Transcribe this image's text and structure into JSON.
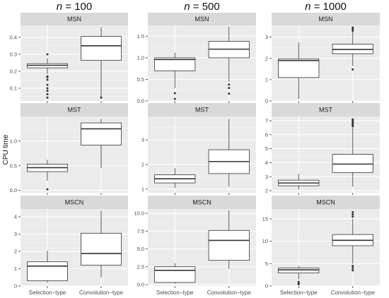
{
  "column_titles": [
    {
      "italic": "n",
      "rest": " = 100"
    },
    {
      "italic": "n",
      "rest": " = 500"
    },
    {
      "italic": "n",
      "rest": " = 1000"
    }
  ],
  "row_titles": [
    "MSN",
    "MST",
    "MSCN"
  ],
  "ylabel": "CPU time",
  "categories": [
    "Selection−type",
    "Convolution−type"
  ],
  "colors": {
    "panel_bg": "#ebebeb",
    "strip_bg": "#d9d9d9",
    "grid_major": "#ffffff",
    "box_fill": "#ffffff",
    "box_line": "#333333"
  },
  "chart_data": [
    {
      "type": "box",
      "row": "MSN",
      "col": "n = 100",
      "ylim": [
        0.025,
        0.47
      ],
      "yticks": [
        0.1,
        0.2,
        0.3,
        0.4
      ],
      "ytick_labels": [
        "0.1",
        "0.2",
        "0.3",
        "0.4"
      ],
      "boxes": [
        {
          "category": "Selection−type",
          "q1": 0.22,
          "median": 0.235,
          "q3": 0.245,
          "whisker_low": 0.185,
          "whisker_high": 0.275,
          "outliers": [
            0.3,
            0.17,
            0.165,
            0.15,
            0.12,
            0.1,
            0.085,
            0.065,
            0.045
          ]
        },
        {
          "category": "Convolution−type",
          "q1": 0.265,
          "median": 0.35,
          "q3": 0.405,
          "whisker_low": 0.05,
          "whisker_high": 0.46,
          "outliers": [
            0.045
          ]
        }
      ]
    },
    {
      "type": "box",
      "row": "MSN",
      "col": "n = 500",
      "ylim": [
        0.0,
        1.75
      ],
      "yticks": [
        0.0,
        0.5,
        1.0,
        1.5
      ],
      "ytick_labels": [
        "0.0",
        "0.5",
        "1.0",
        "1.5"
      ],
      "boxes": [
        {
          "category": "Selection−type",
          "q1": 0.7,
          "median": 0.96,
          "q3": 1.0,
          "whisker_low": 0.3,
          "whisker_high": 1.12,
          "outliers": [
            0.18,
            0.05
          ]
        },
        {
          "category": "Convolution−type",
          "q1": 1.0,
          "median": 1.2,
          "q3": 1.38,
          "whisker_low": 0.45,
          "whisker_high": 1.72,
          "outliers": [
            0.38,
            0.3,
            0.17
          ]
        }
      ]
    },
    {
      "type": "box",
      "row": "MSN",
      "col": "n = 1000",
      "ylim": [
        0.0,
        3.55
      ],
      "yticks": [
        0,
        1,
        2,
        3
      ],
      "ytick_labels": [
        "0",
        "1",
        "2",
        "3"
      ],
      "boxes": [
        {
          "category": "Selection−type",
          "q1": 1.1,
          "median": 1.9,
          "q3": 1.98,
          "whisker_low": 0.1,
          "whisker_high": 2.75,
          "outliers": []
        },
        {
          "category": "Convolution−type",
          "q1": 2.22,
          "median": 2.42,
          "q3": 2.67,
          "whisker_low": 1.65,
          "whisker_high": 3.25,
          "outliers": [
            3.3,
            3.38,
            3.45,
            1.48
          ]
        }
      ]
    },
    {
      "type": "box",
      "row": "MST",
      "col": "n = 100",
      "ylim": [
        -0.05,
        1.5
      ],
      "yticks": [
        0.0,
        0.5,
        1.0
      ],
      "ytick_labels": [
        "0.0",
        "0.5",
        "1.0"
      ],
      "boxes": [
        {
          "category": "Selection−type",
          "q1": 0.38,
          "median": 0.46,
          "q3": 0.53,
          "whisker_low": 0.2,
          "whisker_high": 0.62,
          "outliers": [
            0.02
          ]
        },
        {
          "category": "Convolution−type",
          "q1": 0.92,
          "median": 1.25,
          "q3": 1.37,
          "whisker_low": 0.45,
          "whisker_high": 1.45,
          "outliers": []
        }
      ]
    },
    {
      "type": "box",
      "row": "MST",
      "col": "n = 500",
      "ylim": [
        0.85,
        3.95
      ],
      "yticks": [
        1,
        2,
        3
      ],
      "ytick_labels": [
        "1",
        "2",
        "3"
      ],
      "boxes": [
        {
          "category": "Selection−type",
          "q1": 1.25,
          "median": 1.42,
          "q3": 1.58,
          "whisker_low": 1.05,
          "whisker_high": 1.85,
          "outliers": []
        },
        {
          "category": "Convolution−type",
          "q1": 1.63,
          "median": 2.12,
          "q3": 2.6,
          "whisker_low": 1.1,
          "whisker_high": 3.85,
          "outliers": []
        }
      ]
    },
    {
      "type": "box",
      "row": "MST",
      "col": "n = 1000",
      "ylim": [
        1.85,
        7.3
      ],
      "yticks": [
        2,
        3,
        4,
        5,
        6,
        7
      ],
      "ytick_labels": [
        "2",
        "3",
        "4",
        "5",
        "6",
        "7"
      ],
      "boxes": [
        {
          "category": "Selection−type",
          "q1": 2.35,
          "median": 2.55,
          "q3": 2.75,
          "whisker_low": 2.1,
          "whisker_high": 3.2,
          "outliers": []
        },
        {
          "category": "Convolution−type",
          "q1": 3.3,
          "median": 3.9,
          "q3": 4.6,
          "whisker_low": 2.3,
          "whisker_high": 6.5,
          "outliers": [
            6.6,
            6.7,
            6.8,
            6.9,
            7.0,
            7.1
          ]
        }
      ]
    },
    {
      "type": "box",
      "row": "MSCN",
      "col": "n = 100",
      "ylim": [
        0.0,
        4.45
      ],
      "yticks": [
        0,
        1,
        2,
        3,
        4
      ],
      "ytick_labels": [
        "0",
        "1",
        "2",
        "3",
        "4"
      ],
      "boxes": [
        {
          "category": "Selection−type",
          "q1": 0.3,
          "median": 1.15,
          "q3": 1.4,
          "whisker_low": 0.2,
          "whisker_high": 2.05,
          "outliers": []
        },
        {
          "category": "Convolution−type",
          "q1": 1.2,
          "median": 1.88,
          "q3": 3.05,
          "whisker_low": 0.5,
          "whisker_high": 4.35,
          "outliers": []
        }
      ]
    },
    {
      "type": "box",
      "row": "MSCN",
      "col": "n = 500",
      "ylim": [
        -0.2,
        10.6
      ],
      "yticks": [
        0.0,
        2.5,
        5.0,
        7.5,
        10.0
      ],
      "ytick_labels": [
        "0.0",
        "2.5",
        "5.0",
        "7.5",
        "10.0"
      ],
      "boxes": [
        {
          "category": "Selection−type",
          "q1": 0.3,
          "median": 2.0,
          "q3": 2.5,
          "whisker_low": 0.1,
          "whisker_high": 3.0,
          "outliers": []
        },
        {
          "category": "Convolution−type",
          "q1": 3.4,
          "median": 6.2,
          "q3": 7.6,
          "whisker_low": 2.2,
          "whisker_high": 10.4,
          "outliers": []
        }
      ]
    },
    {
      "type": "box",
      "row": "MSCN",
      "col": "n = 1000",
      "ylim": [
        0.0,
        17.2
      ],
      "yticks": [
        0,
        5,
        10,
        15
      ],
      "ytick_labels": [
        "0",
        "5",
        "10",
        "15"
      ],
      "boxes": [
        {
          "category": "Selection−type",
          "q1": 2.9,
          "median": 3.6,
          "q3": 4.0,
          "whisker_low": 1.5,
          "whisker_high": 4.5,
          "outliers": [
            0.9,
            0.6,
            0.4
          ]
        },
        {
          "category": "Convolution−type",
          "q1": 9.0,
          "median": 10.2,
          "q3": 11.5,
          "whisker_low": 5.0,
          "whisker_high": 15.0,
          "outliers": [
            3.5,
            4.0,
            4.5,
            15.5,
            16.0,
            16.5
          ]
        }
      ]
    }
  ]
}
